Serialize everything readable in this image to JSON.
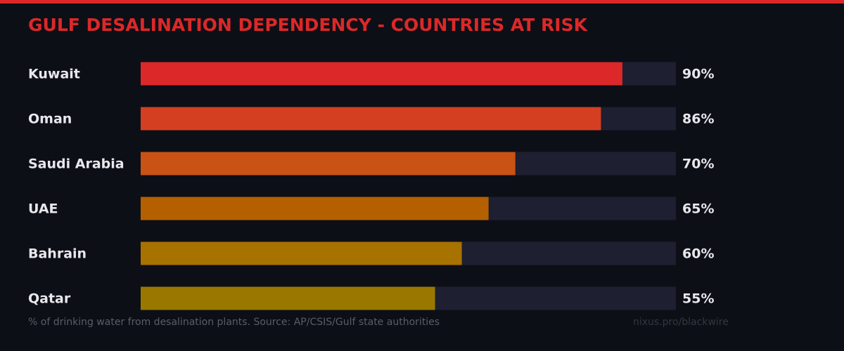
{
  "chart_data": {
    "type": "bar",
    "orientation": "horizontal",
    "title": "GULF DESALINATION DEPENDENCY - COUNTRIES AT RISK",
    "categories": [
      "Kuwait",
      "Oman",
      "Saudi Arabia",
      "UAE",
      "Bahrain",
      "Qatar"
    ],
    "values": [
      90,
      86,
      70,
      65,
      60,
      55
    ],
    "value_labels": [
      "90%",
      "86%",
      "70%",
      "65%",
      "60%",
      "55%"
    ],
    "colors": [
      "#dc2828",
      "#d43f22",
      "#c85314",
      "#b56000",
      "#a87200",
      "#9a7800"
    ],
    "xlim": [
      0,
      100
    ],
    "footnote": "% of drinking water from desalination plants. Source: AP/CSIS/Gulf state authorities",
    "credit": "nixus.pro/blackwire"
  }
}
